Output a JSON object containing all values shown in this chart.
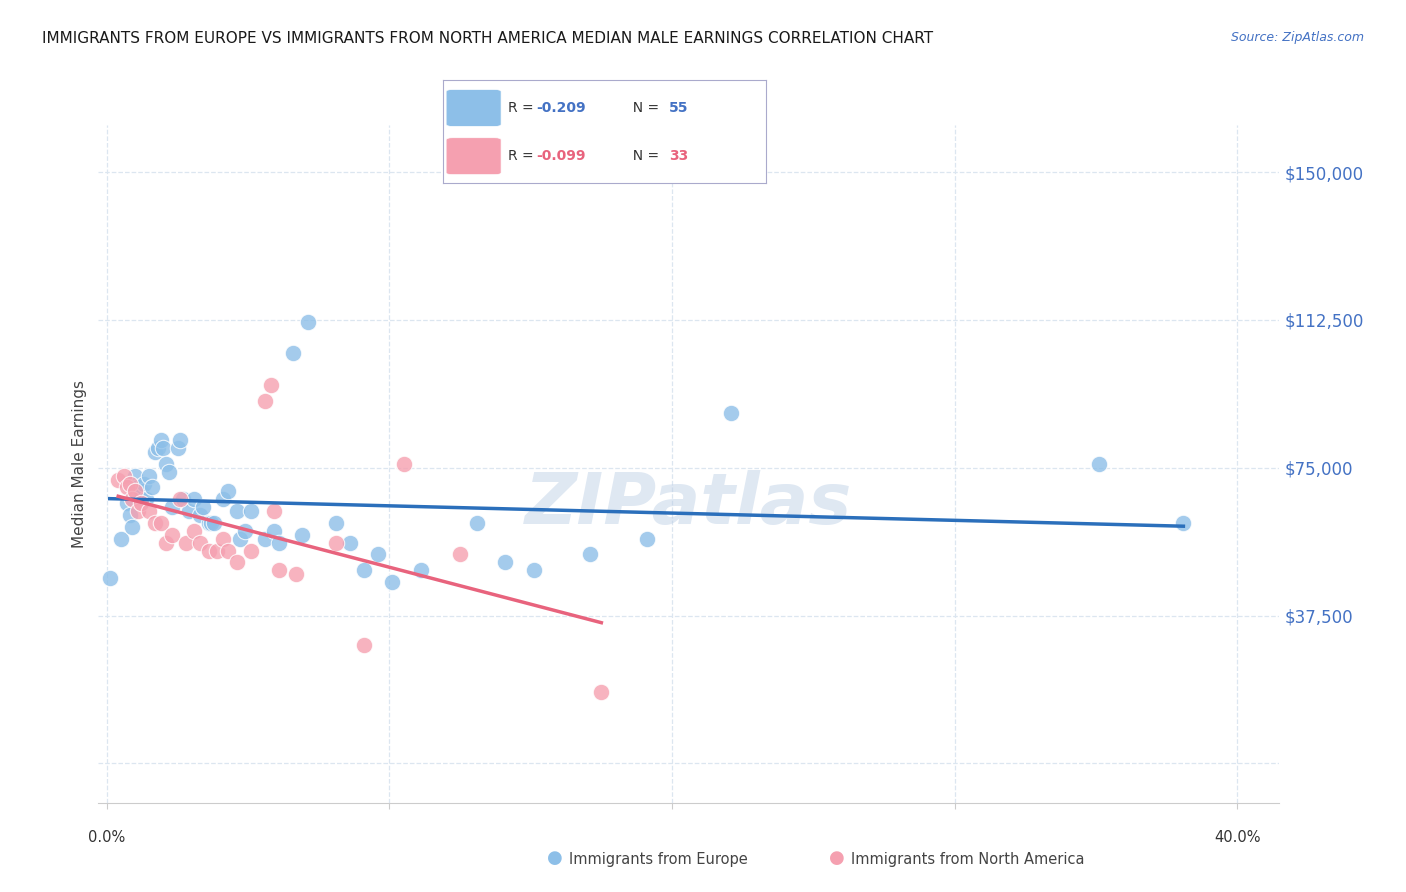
{
  "title": "IMMIGRANTS FROM EUROPE VS IMMIGRANTS FROM NORTH AMERICA MEDIAN MALE EARNINGS CORRELATION CHART",
  "source": "Source: ZipAtlas.com",
  "ylabel": "Median Male Earnings",
  "ytick_labels": [
    "$37,500",
    "$75,000",
    "$112,500",
    "$150,000"
  ],
  "ytick_values": [
    37500,
    75000,
    112500,
    150000
  ],
  "ymax": 162000,
  "ymin": -10000,
  "xmin": -0.003,
  "xmax": 0.415,
  "legend_europe_R": "-0.209",
  "legend_europe_N": "55",
  "legend_na_R": "-0.099",
  "legend_na_N": "33",
  "legend_europe_label": "Immigrants from Europe",
  "legend_na_label": "Immigrants from North America",
  "europe_color": "#8dbfe8",
  "na_color": "#f5a0b0",
  "europe_line_color": "#2b6fbb",
  "na_line_color": "#e8637d",
  "background_color": "#ffffff",
  "grid_color": "#dce6f0",
  "europe_points": [
    [
      0.001,
      47000
    ],
    [
      0.005,
      57000
    ],
    [
      0.007,
      66000
    ],
    [
      0.008,
      63000
    ],
    [
      0.009,
      60000
    ],
    [
      0.01,
      73000
    ],
    [
      0.011,
      70000
    ],
    [
      0.012,
      69000
    ],
    [
      0.013,
      71000
    ],
    [
      0.014,
      67000
    ],
    [
      0.015,
      73000
    ],
    [
      0.016,
      70000
    ],
    [
      0.017,
      79000
    ],
    [
      0.018,
      80000
    ],
    [
      0.019,
      82000
    ],
    [
      0.02,
      80000
    ],
    [
      0.021,
      76000
    ],
    [
      0.022,
      74000
    ],
    [
      0.023,
      65000
    ],
    [
      0.025,
      80000
    ],
    [
      0.026,
      82000
    ],
    [
      0.027,
      67000
    ],
    [
      0.029,
      64000
    ],
    [
      0.031,
      67000
    ],
    [
      0.033,
      63000
    ],
    [
      0.034,
      65000
    ],
    [
      0.036,
      61000
    ],
    [
      0.037,
      61000
    ],
    [
      0.038,
      61000
    ],
    [
      0.041,
      67000
    ],
    [
      0.043,
      69000
    ],
    [
      0.046,
      64000
    ],
    [
      0.047,
      57000
    ],
    [
      0.049,
      59000
    ],
    [
      0.051,
      64000
    ],
    [
      0.056,
      57000
    ],
    [
      0.059,
      59000
    ],
    [
      0.061,
      56000
    ],
    [
      0.066,
      104000
    ],
    [
      0.069,
      58000
    ],
    [
      0.071,
      112000
    ],
    [
      0.081,
      61000
    ],
    [
      0.086,
      56000
    ],
    [
      0.091,
      49000
    ],
    [
      0.096,
      53000
    ],
    [
      0.101,
      46000
    ],
    [
      0.111,
      49000
    ],
    [
      0.131,
      61000
    ],
    [
      0.141,
      51000
    ],
    [
      0.151,
      49000
    ],
    [
      0.171,
      53000
    ],
    [
      0.191,
      57000
    ],
    [
      0.221,
      89000
    ],
    [
      0.351,
      76000
    ],
    [
      0.381,
      61000
    ]
  ],
  "na_points": [
    [
      0.004,
      72000
    ],
    [
      0.006,
      73000
    ],
    [
      0.007,
      70000
    ],
    [
      0.008,
      71000
    ],
    [
      0.009,
      67000
    ],
    [
      0.01,
      69000
    ],
    [
      0.011,
      64000
    ],
    [
      0.012,
      66000
    ],
    [
      0.015,
      64000
    ],
    [
      0.017,
      61000
    ],
    [
      0.019,
      61000
    ],
    [
      0.021,
      56000
    ],
    [
      0.023,
      58000
    ],
    [
      0.026,
      67000
    ],
    [
      0.028,
      56000
    ],
    [
      0.031,
      59000
    ],
    [
      0.033,
      56000
    ],
    [
      0.036,
      54000
    ],
    [
      0.039,
      54000
    ],
    [
      0.041,
      57000
    ],
    [
      0.043,
      54000
    ],
    [
      0.046,
      51000
    ],
    [
      0.051,
      54000
    ],
    [
      0.056,
      92000
    ],
    [
      0.058,
      96000
    ],
    [
      0.059,
      64000
    ],
    [
      0.061,
      49000
    ],
    [
      0.067,
      48000
    ],
    [
      0.081,
      56000
    ],
    [
      0.091,
      30000
    ],
    [
      0.105,
      76000
    ],
    [
      0.125,
      53000
    ],
    [
      0.175,
      18000
    ]
  ]
}
